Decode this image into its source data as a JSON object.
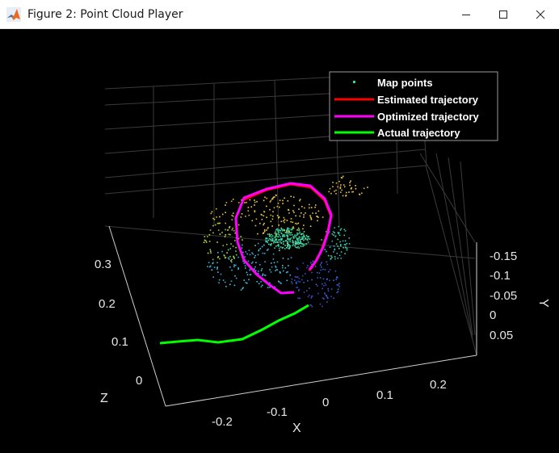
{
  "window": {
    "title": "Figure 2: Point Cloud Player",
    "controls": [
      "minimize",
      "maximize",
      "close"
    ]
  },
  "colors": {
    "background": "#000000",
    "estimated": "#ff0000",
    "optimized": "#ff00ff",
    "actual": "#00ff00",
    "map_points": "#33d6a5",
    "grid": "#3c3c3c",
    "axis_text": "#e6e6e6"
  },
  "legend": {
    "entries": [
      {
        "label": "Map points",
        "marker": "point"
      },
      {
        "label": "Estimated trajectory",
        "marker": "line-red"
      },
      {
        "label": "Optimized trajectory",
        "marker": "line-magenta"
      },
      {
        "label": "Actual trajectory",
        "marker": "line-green"
      }
    ]
  },
  "axes": {
    "x": {
      "label": "X",
      "ticks": [
        "-0.2",
        "-0.1",
        "0",
        "0.1",
        "0.2"
      ]
    },
    "y": {
      "label": "Y",
      "ticks": [
        "-0.15",
        "-0.1",
        "-0.05",
        "0",
        "0.05"
      ]
    },
    "z": {
      "label": "Z",
      "ticks": [
        "0.3",
        "0.2",
        "0.1",
        "0"
      ]
    }
  }
}
